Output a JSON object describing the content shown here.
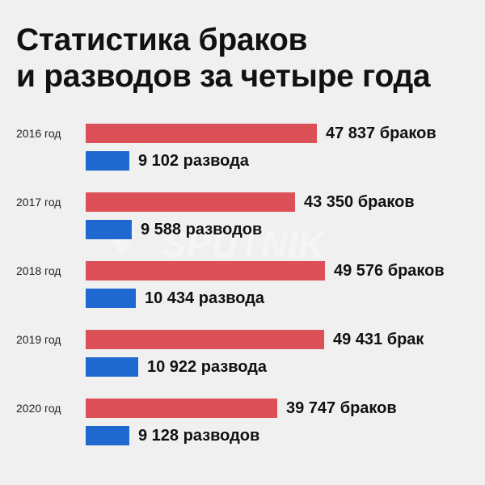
{
  "title_line1": "Статистика браков",
  "title_line2": "и разводов за четыре года",
  "watermark": "SPUTNIK",
  "colors": {
    "background": "#f0f0f0",
    "marriages": "#dc5158",
    "divorces": "#1f68d0",
    "text": "#111111",
    "watermark": "#ffffff"
  },
  "chart_data": {
    "type": "bar",
    "orientation": "horizontal",
    "categories": [
      "2016 год",
      "2017 год",
      "2018 год",
      "2019 год",
      "2020 год"
    ],
    "series": [
      {
        "key": "marriages",
        "values": [
          47837,
          43350,
          49576,
          49431,
          39747
        ],
        "labels": [
          "47 837 браков",
          "43 350 браков",
          "49 576 браков",
          "49 431 брак",
          "39 747 браков"
        ]
      },
      {
        "key": "divorces",
        "values": [
          9102,
          9588,
          10434,
          10922,
          9128
        ],
        "labels": [
          "9 102 развода",
          "9 588 разводов",
          "10 434 развода",
          "10 922 развода",
          "9 128 разводов"
        ]
      }
    ],
    "xlim": [
      0,
      49576
    ],
    "grid": false,
    "legend": false
  }
}
